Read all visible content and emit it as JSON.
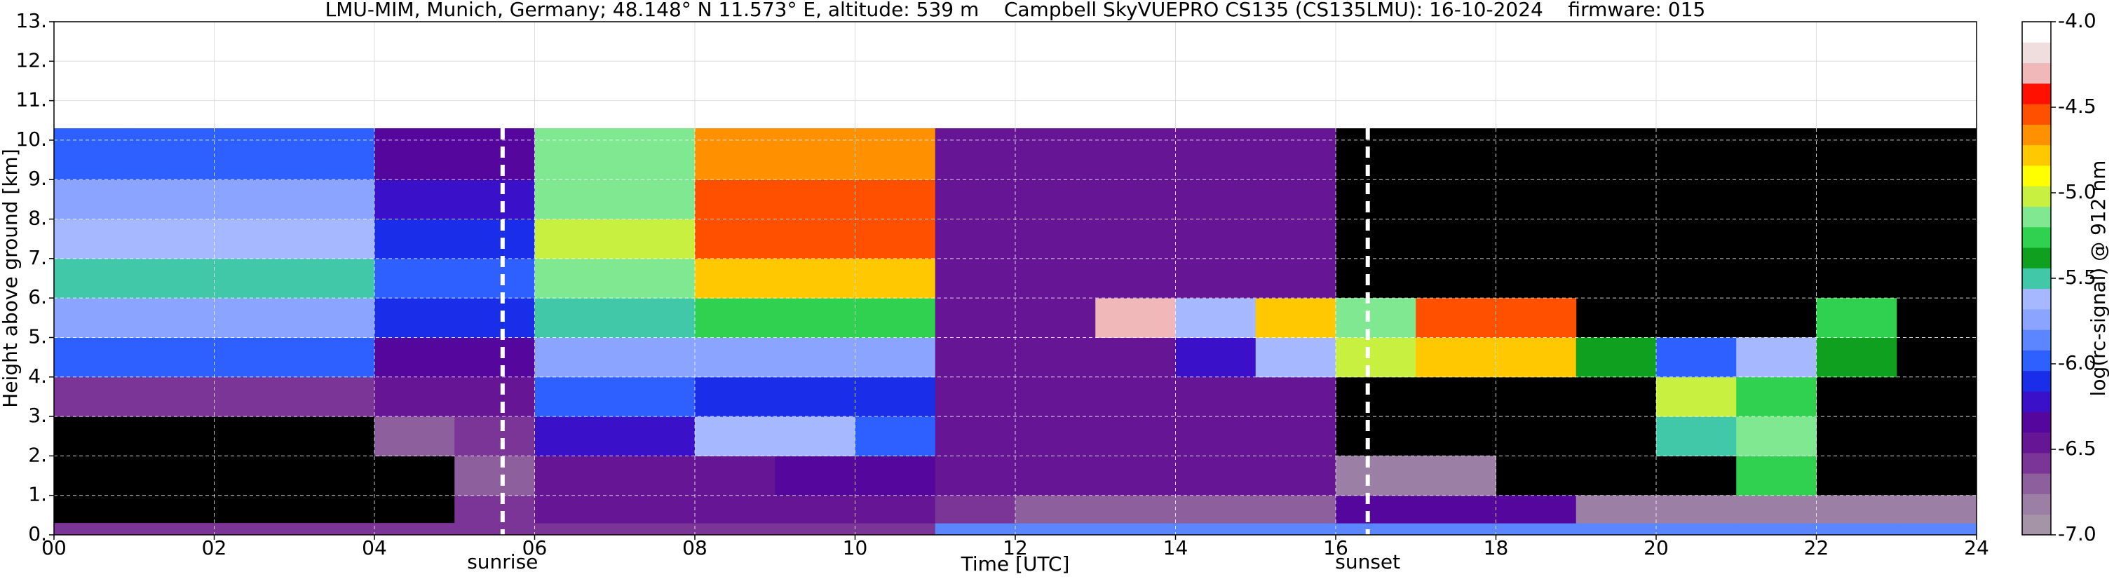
{
  "chart_data": {
    "type": "heatmap",
    "title": "LMU-MIM, Munich, Germany; 48.148° N 11.573° E, altitude: 539 m    Campbell SkyVUEPRO CS135 (CS135LMU): 16-10-2024    firmware: 015",
    "x_label": "Time [UTC]",
    "y_label": "Height above ground [km]",
    "colorbar_label": "log(rc-signal) @ 912 nm",
    "xlim": [
      0,
      24
    ],
    "ylim": [
      0,
      13
    ],
    "xticks": [
      {
        "value": 0,
        "label": "00"
      },
      {
        "value": 2,
        "label": "02"
      },
      {
        "value": 4,
        "label": "04"
      },
      {
        "value": 6,
        "label": "06"
      },
      {
        "value": 8,
        "label": "08"
      },
      10,
      12,
      14,
      16,
      18,
      20,
      22,
      24
    ],
    "yticks": [
      {
        "value": 0,
        "label": "0."
      },
      {
        "value": 1,
        "label": "1."
      },
      {
        "value": 2,
        "label": "2."
      },
      {
        "value": 3,
        "label": "3."
      },
      {
        "value": 4,
        "label": "4."
      },
      {
        "value": 5,
        "label": "5."
      },
      {
        "value": 6,
        "label": "6."
      },
      {
        "value": 7,
        "label": "7."
      },
      {
        "value": 8,
        "label": "8."
      },
      {
        "value": 9,
        "label": "9."
      },
      {
        "value": 10,
        "label": "10."
      },
      {
        "value": 11,
        "label": "11."
      },
      {
        "value": 12,
        "label": "12."
      },
      {
        "value": 13,
        "label": "13."
      }
    ],
    "clim": [
      -7,
      -4
    ],
    "cticks": [
      {
        "value": -4,
        "label": "-4.0"
      },
      {
        "value": -4.5,
        "label": "-4.5"
      },
      {
        "value": -5,
        "label": "-5.0"
      },
      {
        "value": -5.5,
        "label": "-5.5"
      },
      {
        "value": -6,
        "label": "-6.0"
      },
      {
        "value": -6.5,
        "label": "-6.5"
      },
      {
        "value": -7,
        "label": "-7.0"
      }
    ],
    "colormap": [
      "#a593a8",
      "#9c7fa4",
      "#8d5f9c",
      "#7a3596",
      "#661694",
      "#55069c",
      "#3a10c8",
      "#1a2de8",
      "#2e60ff",
      "#5c86ff",
      "#8aa4ff",
      "#a6b8ff",
      "#40c8a8",
      "#10a020",
      "#30d050",
      "#80e890",
      "#c8f040",
      "#ffff00",
      "#ffc800",
      "#ff9000",
      "#ff5000",
      "#ff1000",
      "#f0b8b8",
      "#f0dede",
      "#ffffff"
    ],
    "grid": true,
    "x_edges": [
      0,
      1,
      2,
      3,
      4,
      5,
      6,
      7,
      8,
      9,
      10,
      11,
      12,
      13,
      14,
      15,
      16,
      17,
      18,
      19,
      20,
      21,
      22,
      23,
      24
    ],
    "y_edges": [
      0,
      0.3,
      1,
      2,
      3,
      4,
      5,
      6,
      7,
      8,
      9,
      10.3
    ],
    "z": [
      [
        -6.6,
        -6.6,
        -6.6,
        -6.6,
        -6.6,
        -6.6,
        -6.6,
        -6.6,
        -6.6,
        -6.6,
        -6.6,
        -5.9,
        -5.9,
        -5.9,
        -5.9,
        -5.9,
        -5.9,
        -5.9,
        -5.9,
        -5.9,
        -5.9,
        -5.9,
        -5.9,
        -5.9
      ],
      [
        null,
        null,
        null,
        null,
        null,
        -6.6,
        -6.5,
        -6.5,
        -6.5,
        -6.5,
        -6.5,
        -6.6,
        -6.7,
        -6.7,
        -6.7,
        -6.7,
        -6.3,
        -6.3,
        -6.3,
        -6.8,
        -6.8,
        -6.8,
        -6.8,
        -6.8
      ],
      [
        null,
        null,
        null,
        null,
        null,
        -6.7,
        -6.4,
        -6.4,
        -6.4,
        -6.3,
        -6.3,
        -6.5,
        -6.5,
        -6.5,
        -6.5,
        -6.5,
        -6.8,
        -6.8,
        null,
        null,
        null,
        -5.3,
        null,
        null
      ],
      [
        null,
        null,
        null,
        null,
        -6.7,
        -6.6,
        -6.2,
        -6.2,
        -5.6,
        -5.6,
        -6.0,
        -6.4,
        -6.4,
        -6.4,
        -6.4,
        -6.4,
        null,
        null,
        null,
        null,
        -5.5,
        -5.2,
        null,
        null
      ],
      [
        -6.6,
        -6.6,
        -6.6,
        -6.6,
        -6.5,
        -6.5,
        -6.0,
        -6.0,
        -6.1,
        -6.1,
        -6.1,
        -6.4,
        -6.4,
        -6.4,
        -6.4,
        -6.4,
        null,
        null,
        null,
        null,
        -5.0,
        -5.3,
        null,
        null
      ],
      [
        -6.0,
        -6.0,
        -6.0,
        -6.0,
        -6.3,
        -6.3,
        -5.8,
        -5.8,
        -5.8,
        -5.8,
        -5.8,
        -6.4,
        -6.4,
        -6.4,
        -6.2,
        -5.6,
        -5.0,
        -4.8,
        -4.8,
        -5.4,
        -6.0,
        -5.6,
        -5.4,
        null
      ],
      [
        -5.7,
        -5.7,
        -5.7,
        -5.7,
        -6.1,
        -6.1,
        -5.5,
        -5.5,
        -5.3,
        -5.3,
        -5.3,
        -6.4,
        -6.4,
        -4.3,
        -5.6,
        -4.8,
        -5.1,
        -4.6,
        -4.6,
        null,
        null,
        null,
        -5.3,
        null
      ],
      [
        -5.5,
        -5.5,
        -5.5,
        -5.5,
        -6.0,
        -6.0,
        -5.2,
        -5.2,
        -4.8,
        -4.8,
        -4.8,
        -6.4,
        -6.4,
        -6.4,
        -6.4,
        -6.4,
        null,
        null,
        null,
        null,
        null,
        null,
        null,
        null
      ],
      [
        -5.6,
        -5.6,
        -5.6,
        -5.6,
        -6.1,
        -6.1,
        -5.0,
        -5.0,
        -4.6,
        -4.6,
        -4.6,
        -6.4,
        -6.4,
        -6.4,
        -6.4,
        -6.4,
        null,
        null,
        null,
        null,
        null,
        null,
        null,
        null
      ],
      [
        -5.8,
        -5.8,
        -5.8,
        -5.8,
        -6.2,
        -6.2,
        -5.1,
        -5.1,
        -4.5,
        -4.5,
        -4.5,
        -6.4,
        -6.4,
        -6.4,
        -6.4,
        -6.4,
        null,
        null,
        null,
        null,
        null,
        null,
        null,
        null
      ],
      [
        -6.0,
        -6.0,
        -6.0,
        -6.0,
        -6.3,
        -6.3,
        -5.2,
        -5.2,
        -4.7,
        -4.7,
        -4.7,
        -6.4,
        -6.4,
        -6.4,
        -6.4,
        -6.4,
        null,
        null,
        null,
        null,
        null,
        null,
        null,
        null
      ]
    ],
    "annotations": [
      {
        "label": "sunrise",
        "x": 5.6
      },
      {
        "label": "sunset",
        "x": 16.4
      }
    ]
  }
}
